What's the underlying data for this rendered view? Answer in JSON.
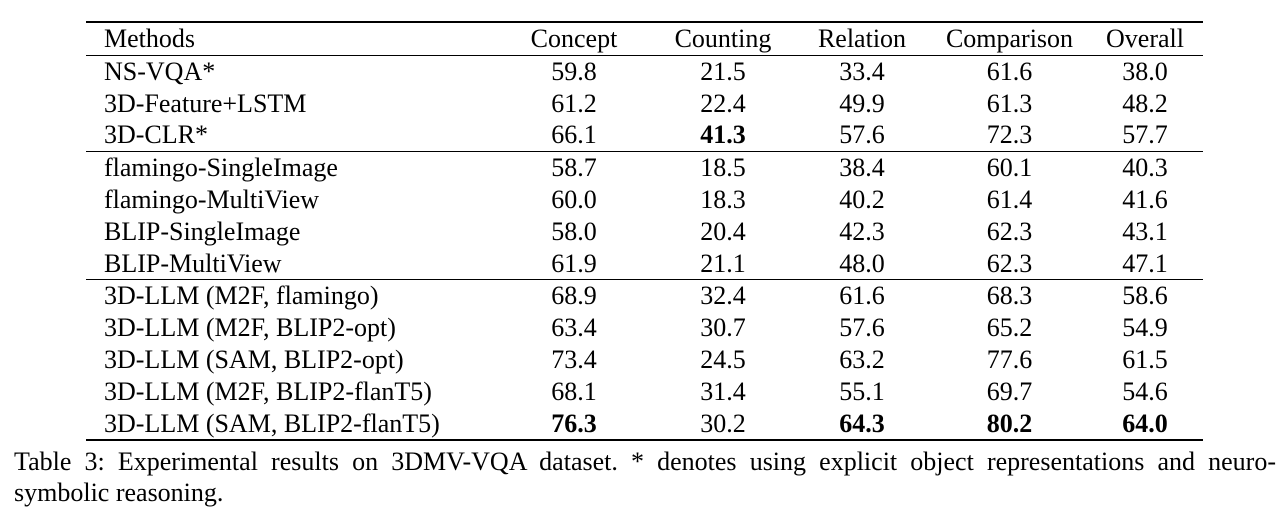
{
  "table": {
    "headers": [
      "Methods",
      "Concept",
      "Counting",
      "Relation",
      "Comparison",
      "Overall"
    ],
    "groups": [
      [
        {
          "method": "NS-VQA*",
          "values": [
            "59.8",
            "21.5",
            "33.4",
            "61.6",
            "38.0"
          ],
          "bold": [
            false,
            false,
            false,
            false,
            false
          ]
        },
        {
          "method": "3D-Feature+LSTM",
          "values": [
            "61.2",
            "22.4",
            "49.9",
            "61.3",
            "48.2"
          ],
          "bold": [
            false,
            false,
            false,
            false,
            false
          ]
        },
        {
          "method": "3D-CLR*",
          "values": [
            "66.1",
            "41.3",
            "57.6",
            "72.3",
            "57.7"
          ],
          "bold": [
            false,
            true,
            false,
            false,
            false
          ]
        }
      ],
      [
        {
          "method": "flamingo-SingleImage",
          "values": [
            "58.7",
            "18.5",
            "38.4",
            "60.1",
            "40.3"
          ],
          "bold": [
            false,
            false,
            false,
            false,
            false
          ]
        },
        {
          "method": "flamingo-MultiView",
          "values": [
            "60.0",
            "18.3",
            "40.2",
            "61.4",
            "41.6"
          ],
          "bold": [
            false,
            false,
            false,
            false,
            false
          ]
        },
        {
          "method": "BLIP-SingleImage",
          "values": [
            "58.0",
            "20.4",
            "42.3",
            "62.3",
            "43.1"
          ],
          "bold": [
            false,
            false,
            false,
            false,
            false
          ]
        },
        {
          "method": "BLIP-MultiView",
          "values": [
            "61.9",
            "21.1",
            "48.0",
            "62.3",
            "47.1"
          ],
          "bold": [
            false,
            false,
            false,
            false,
            false
          ]
        }
      ],
      [
        {
          "method": "3D-LLM (M2F, flamingo)",
          "values": [
            "68.9",
            "32.4",
            "61.6",
            "68.3",
            "58.6"
          ],
          "bold": [
            false,
            false,
            false,
            false,
            false
          ]
        },
        {
          "method": "3D-LLM (M2F, BLIP2-opt)",
          "values": [
            "63.4",
            "30.7",
            "57.6",
            "65.2",
            "54.9"
          ],
          "bold": [
            false,
            false,
            false,
            false,
            false
          ]
        },
        {
          "method": "3D-LLM (SAM, BLIP2-opt)",
          "values": [
            "73.4",
            "24.5",
            "63.2",
            "77.6",
            "61.5"
          ],
          "bold": [
            false,
            false,
            false,
            false,
            false
          ]
        },
        {
          "method": "3D-LLM (M2F, BLIP2-flanT5)",
          "values": [
            "68.1",
            "31.4",
            "55.1",
            "69.7",
            "54.6"
          ],
          "bold": [
            false,
            false,
            false,
            false,
            false
          ]
        },
        {
          "method": "3D-LLM (SAM, BLIP2-flanT5)",
          "values": [
            "76.3",
            "30.2",
            "64.3",
            "80.2",
            "64.0"
          ],
          "bold": [
            true,
            false,
            true,
            true,
            true
          ]
        }
      ]
    ]
  },
  "caption": "Table 3: Experimental results on 3DMV-VQA dataset. * denotes using explicit object representations and neuro-symbolic reasoning."
}
